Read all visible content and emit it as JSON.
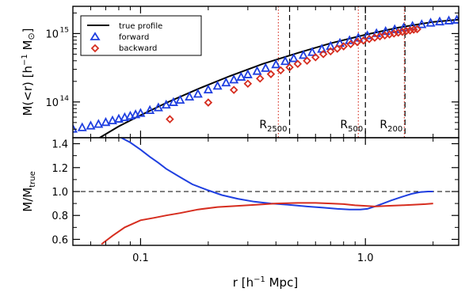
{
  "chart_data": [
    {
      "type": "scatter",
      "panel": "top",
      "xscale": "log",
      "yscale": "log",
      "xlim": [
        0.05,
        2.6
      ],
      "ylim": [
        30000000000000,
        2500000000000000
      ],
      "ylabel": {
        "prefix": "M(<r)  [h",
        "sup": "−1",
        "suffix": " M",
        "sym": "⊙",
        "close": "]"
      },
      "y_ticklabels": [
        {
          "value": 100000000000000,
          "base": "10",
          "exp": "14"
        },
        {
          "value": 1000000000000000,
          "base": "10",
          "exp": "15"
        }
      ],
      "legend": {
        "position": "top-left",
        "entries": [
          {
            "label": "true profile",
            "marker": "line",
            "color": "#000000"
          },
          {
            "label": "forward",
            "marker": "triangle",
            "color": "#1f3fe0"
          },
          {
            "label": "backward",
            "marker": "diamond",
            "color": "#d62d1f"
          }
        ]
      },
      "series": [
        {
          "name": "true profile",
          "color": "#000000",
          "x": [
            0.06,
            0.08,
            0.1,
            0.13,
            0.18,
            0.25,
            0.35,
            0.5,
            0.7,
            1.0,
            1.4,
            2.0,
            2.6
          ],
          "y": [
            25000000000000,
            44000000000000,
            64000000000000,
            97000000000000,
            155000000000000,
            240000000000000,
            360000000000000,
            520000000000000,
            720000000000000,
            960000000000000,
            1220000000000000,
            1480000000000000,
            1600000000000000
          ]
        },
        {
          "name": "forward",
          "color": "#1f3fe0",
          "x": [
            0.05,
            0.055,
            0.06,
            0.065,
            0.07,
            0.075,
            0.08,
            0.085,
            0.09,
            0.095,
            0.1,
            0.11,
            0.12,
            0.13,
            0.14,
            0.15,
            0.165,
            0.18,
            0.2,
            0.22,
            0.24,
            0.26,
            0.28,
            0.3,
            0.33,
            0.36,
            0.4,
            0.44,
            0.48,
            0.53,
            0.58,
            0.64,
            0.7,
            0.77,
            0.85,
            0.93,
            1.02,
            1.12,
            1.23,
            1.35,
            1.48,
            1.62,
            1.78,
            1.95,
            2.14,
            2.35,
            2.55
          ],
          "y": [
            40000000000000,
            42000000000000,
            44500000000000,
            47000000000000,
            50000000000000,
            53000000000000,
            56000000000000,
            59000000000000,
            62000000000000,
            65000000000000,
            68000000000000,
            75000000000000,
            82000000000000,
            90000000000000,
            98000000000000,
            106000000000000,
            118000000000000,
            130000000000000,
            150000000000000,
            170000000000000,
            190000000000000,
            210000000000000,
            230000000000000,
            250000000000000,
            280000000000000,
            310000000000000,
            350000000000000,
            390000000000000,
            430000000000000,
            480000000000000,
            530000000000000,
            590000000000000,
            650000000000000,
            720000000000000,
            790000000000000,
            860000000000000,
            930000000000000,
            1000000000000000,
            1070000000000000,
            1140000000000000,
            1210000000000000,
            1280000000000000,
            1350000000000000,
            1420000000000000,
            1480000000000000,
            1530000000000000,
            1570000000000000
          ]
        },
        {
          "name": "backward",
          "color": "#d62d1f",
          "x": [
            0.135,
            0.2,
            0.26,
            0.3,
            0.34,
            0.38,
            0.42,
            0.46,
            0.5,
            0.55,
            0.6,
            0.65,
            0.7,
            0.75,
            0.8,
            0.86,
            0.92,
            0.98,
            1.04,
            1.1,
            1.16,
            1.22,
            1.28,
            1.34,
            1.4,
            1.46,
            1.52,
            1.58,
            1.64,
            1.7
          ],
          "y": [
            56000000000000,
            98000000000000,
            150000000000000,
            185000000000000,
            220000000000000,
            255000000000000,
            290000000000000,
            320000000000000,
            360000000000000,
            400000000000000,
            450000000000000,
            500000000000000,
            550000000000000,
            600000000000000,
            650000000000000,
            700000000000000,
            750000000000000,
            790000000000000,
            830000000000000,
            870000000000000,
            910000000000000,
            940000000000000,
            970000000000000,
            1000000000000000,
            1030000000000000,
            1060000000000000,
            1090000000000000,
            1110000000000000,
            1140000000000000,
            1160000000000000
          ]
        }
      ],
      "annotations": [
        {
          "main": "R",
          "sub": "2500",
          "x": 0.46,
          "style": "dashed",
          "color": "#000000"
        },
        {
          "main": "",
          "sub": "",
          "x": 0.41,
          "style": "dotted",
          "color": "#d62d1f"
        },
        {
          "main": "R",
          "sub": "500",
          "x": 1.0,
          "style": "dashed",
          "color": "#000000"
        },
        {
          "main": "",
          "sub": "",
          "x": 0.93,
          "style": "dotted",
          "color": "#d62d1f"
        },
        {
          "main": "R",
          "sub": "200",
          "x": 1.5,
          "style": "dashed",
          "color": "#000000"
        },
        {
          "main": "",
          "sub": "",
          "x": 1.49,
          "style": "dotted",
          "color": "#d62d1f"
        }
      ]
    },
    {
      "type": "line",
      "panel": "bottom",
      "xscale": "log",
      "xlim": [
        0.05,
        2.6
      ],
      "ylim": [
        0.55,
        1.45
      ],
      "ylabel": {
        "main": "M/M",
        "sub": "true"
      },
      "xlabel": {
        "prefix": "r  [h",
        "sup": "−1",
        "suffix": " Mpc]"
      },
      "x_ticklabels": [
        {
          "value": 0.1,
          "label": "0.1"
        },
        {
          "value": 1.0,
          "label": "1.0"
        }
      ],
      "y_ticklabels": [
        {
          "value": 0.6,
          "label": "0.6"
        },
        {
          "value": 0.8,
          "label": "0.8"
        },
        {
          "value": 1.0,
          "label": "1.0"
        },
        {
          "value": 1.2,
          "label": "1.2"
        },
        {
          "value": 1.4,
          "label": "1.4"
        }
      ],
      "reference_line": {
        "y": 1.0,
        "style": "dashed"
      },
      "series": [
        {
          "name": "forward",
          "color": "#1f3fe0",
          "x": [
            0.082,
            0.09,
            0.1,
            0.11,
            0.12,
            0.13,
            0.15,
            0.17,
            0.2,
            0.23,
            0.27,
            0.32,
            0.38,
            0.45,
            0.55,
            0.65,
            0.75,
            0.85,
            0.95,
            1.02,
            1.1,
            1.2,
            1.3,
            1.45,
            1.6,
            1.75,
            1.9,
            2.0
          ],
          "y": [
            1.45,
            1.41,
            1.35,
            1.29,
            1.24,
            1.19,
            1.12,
            1.06,
            1.01,
            0.97,
            0.94,
            0.915,
            0.9,
            0.89,
            0.875,
            0.865,
            0.855,
            0.85,
            0.85,
            0.855,
            0.875,
            0.9,
            0.925,
            0.955,
            0.98,
            0.995,
            1.0,
            1.0
          ]
        },
        {
          "name": "backward",
          "color": "#d62d1f",
          "x": [
            0.067,
            0.075,
            0.085,
            0.1,
            0.115,
            0.13,
            0.15,
            0.18,
            0.22,
            0.27,
            0.33,
            0.4,
            0.5,
            0.6,
            0.7,
            0.8,
            0.9,
            1.0,
            1.1,
            1.25,
            1.45,
            1.65,
            1.85,
            2.0
          ],
          "y": [
            0.56,
            0.63,
            0.7,
            0.76,
            0.78,
            0.8,
            0.82,
            0.85,
            0.87,
            0.88,
            0.89,
            0.9,
            0.905,
            0.905,
            0.9,
            0.895,
            0.885,
            0.88,
            0.875,
            0.88,
            0.885,
            0.89,
            0.895,
            0.9
          ]
        }
      ]
    }
  ]
}
